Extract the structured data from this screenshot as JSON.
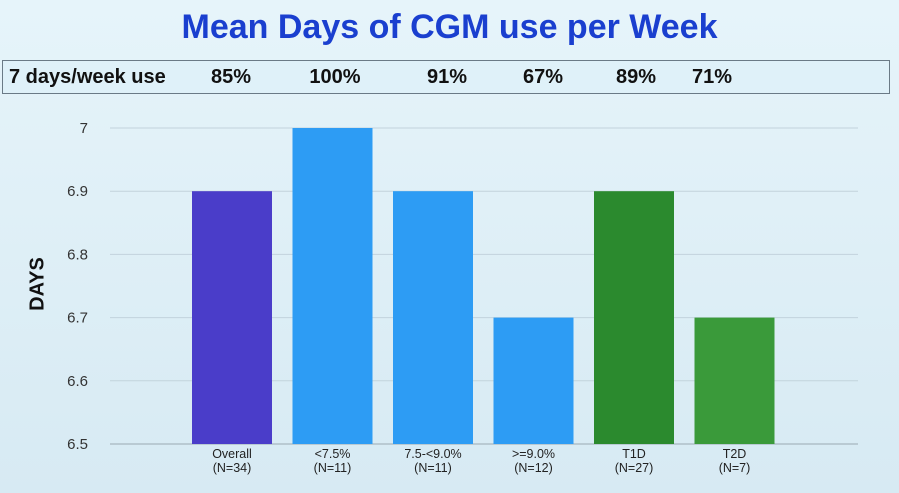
{
  "slide": {
    "title": "Mean Days of CGM use per Week",
    "weekly_use_label": "7 days/week use",
    "weekly_use_values": [
      "85%",
      "100%",
      "91%",
      "67%",
      "89%",
      "71%"
    ]
  },
  "chart_data": {
    "type": "bar",
    "title": "Mean Days of CGM use per Week",
    "ylabel": "DAYS",
    "xlabel": "",
    "ylim": [
      6.5,
      7
    ],
    "yticks": [
      "6.5",
      "6.6",
      "6.7",
      "6.8",
      "6.9",
      "7"
    ],
    "grid": true,
    "categories": [
      [
        "Overall",
        "(N=34)"
      ],
      [
        "<7.5%",
        "(N=11)"
      ],
      [
        "7.5-<9.0%",
        "(N=11)"
      ],
      [
        ">=9.0%",
        "(N=12)"
      ],
      [
        "T1D",
        "(N=27)"
      ],
      [
        "T2D",
        "(N=7)"
      ]
    ],
    "values": [
      6.9,
      7.0,
      6.9,
      6.7,
      6.9,
      6.7
    ],
    "colors": [
      "#4a3dc9",
      "#2d9cf4",
      "#2d9cf4",
      "#2d9cf4",
      "#2b8a2e",
      "#3a9a3a"
    ]
  }
}
